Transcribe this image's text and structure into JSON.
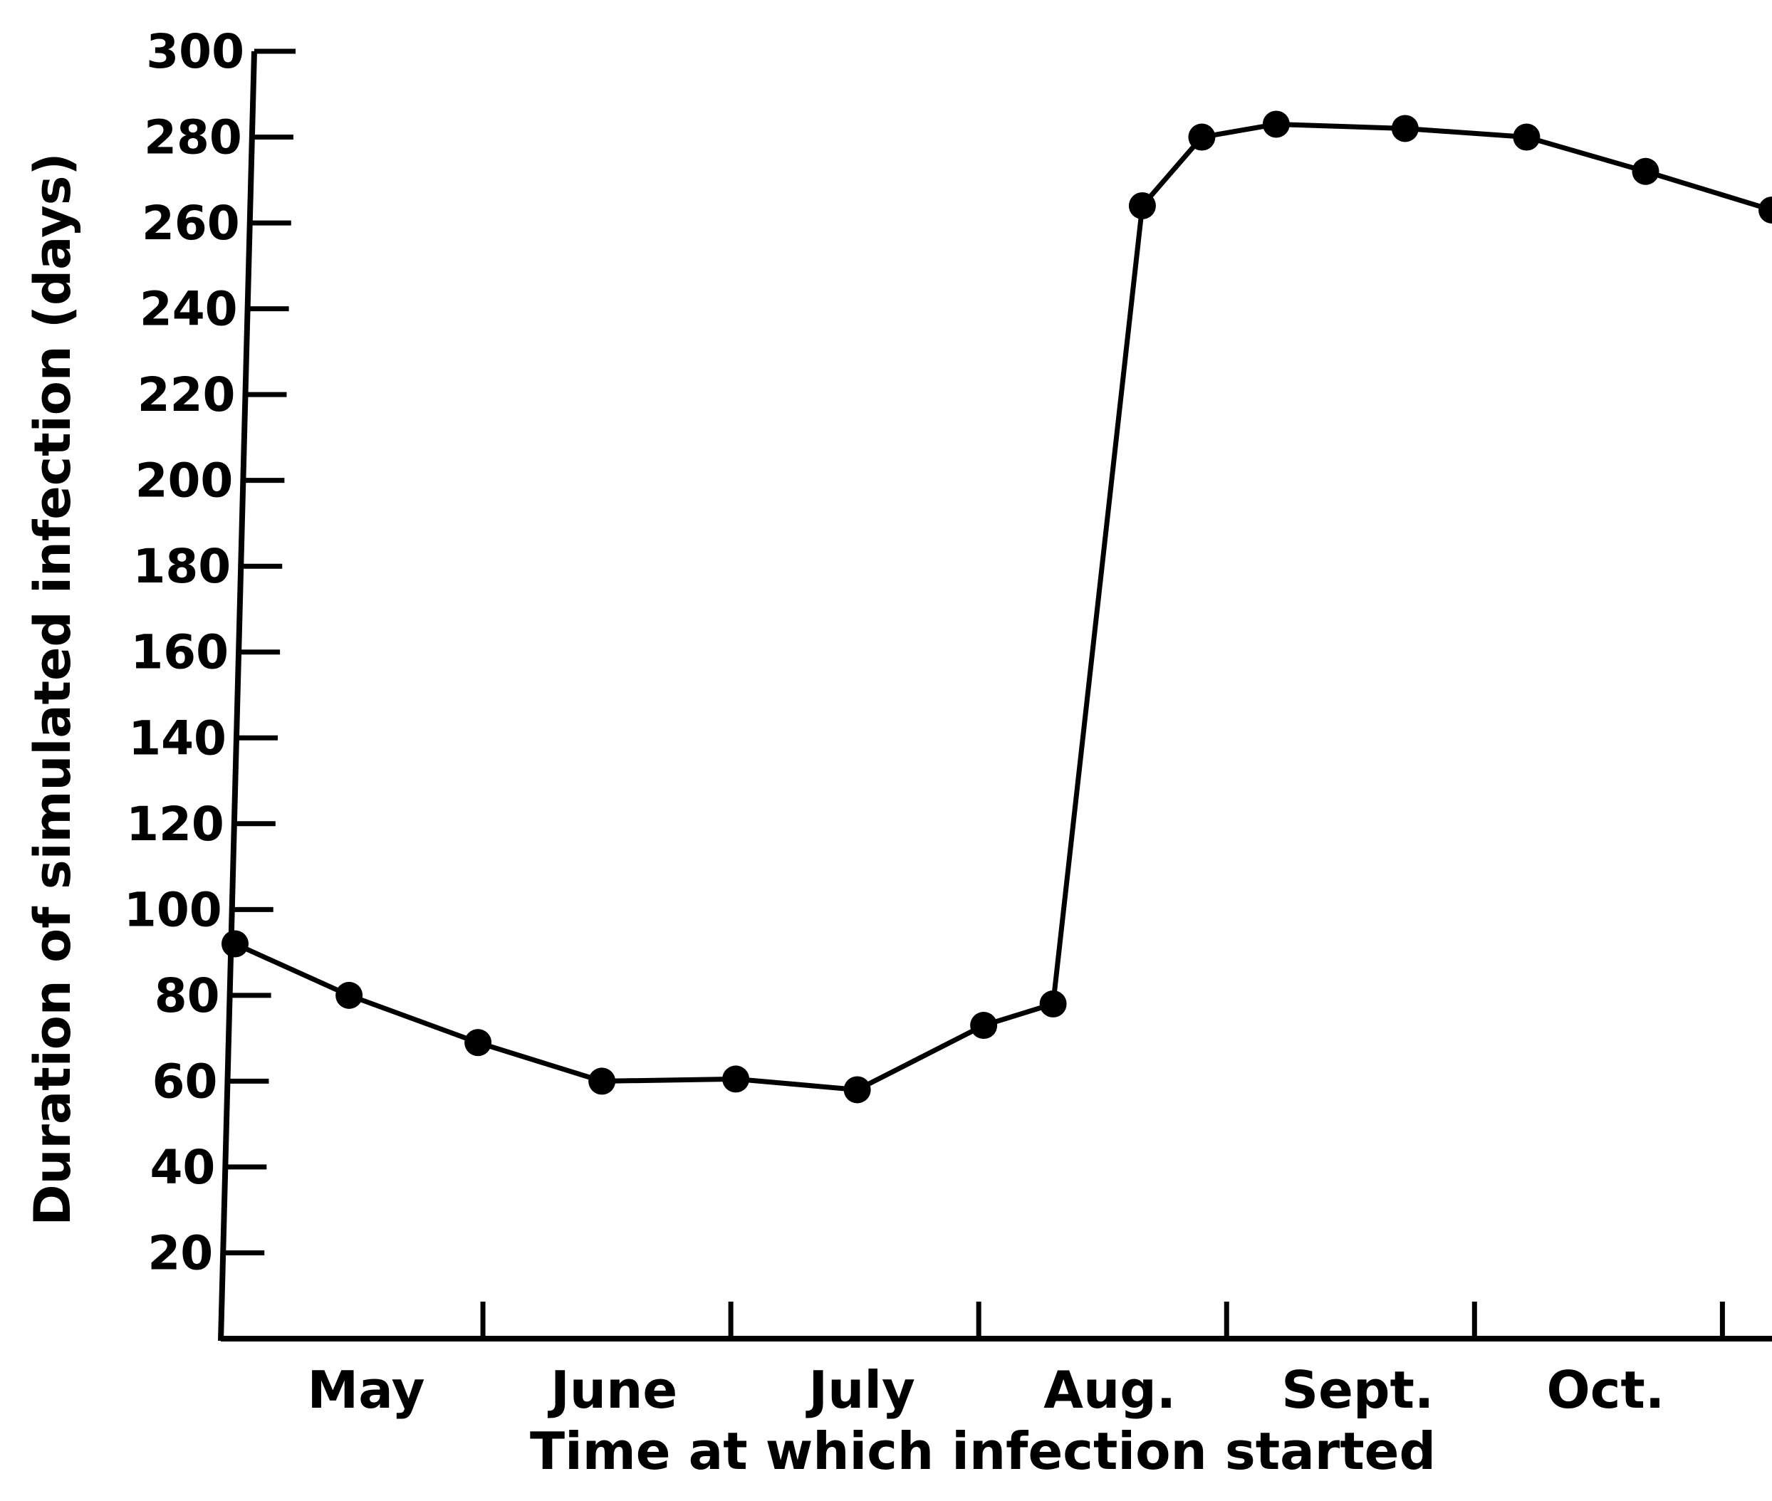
{
  "chart_data": {
    "type": "line",
    "xlabel": "Time at which infection started",
    "ylabel": "Duration of simulated infection (days)",
    "ylim": [
      0,
      300
    ],
    "yticks": [
      20,
      40,
      60,
      80,
      100,
      120,
      140,
      160,
      180,
      200,
      220,
      240,
      260,
      280,
      300
    ],
    "ytick_labels": [
      "20",
      "40",
      "60",
      "80",
      "100",
      "120",
      "140",
      "160",
      "180",
      "200",
      "220",
      "240",
      "260",
      "280",
      "300"
    ],
    "month_labels": [
      "May",
      "June",
      "July",
      "Aug.",
      "Sept.",
      "Oct."
    ],
    "x_domain": [
      0,
      6.2
    ],
    "series": [
      {
        "x": [
          0.0,
          0.46,
          0.98,
          1.48,
          2.02,
          2.51,
          3.02,
          3.3,
          3.66,
          3.9,
          4.2,
          4.72,
          5.21,
          5.69,
          6.2
        ],
        "values": [
          92,
          80,
          69,
          60,
          60.5,
          58,
          73,
          78,
          264,
          280,
          283,
          282,
          280,
          272,
          263
        ]
      }
    ]
  }
}
